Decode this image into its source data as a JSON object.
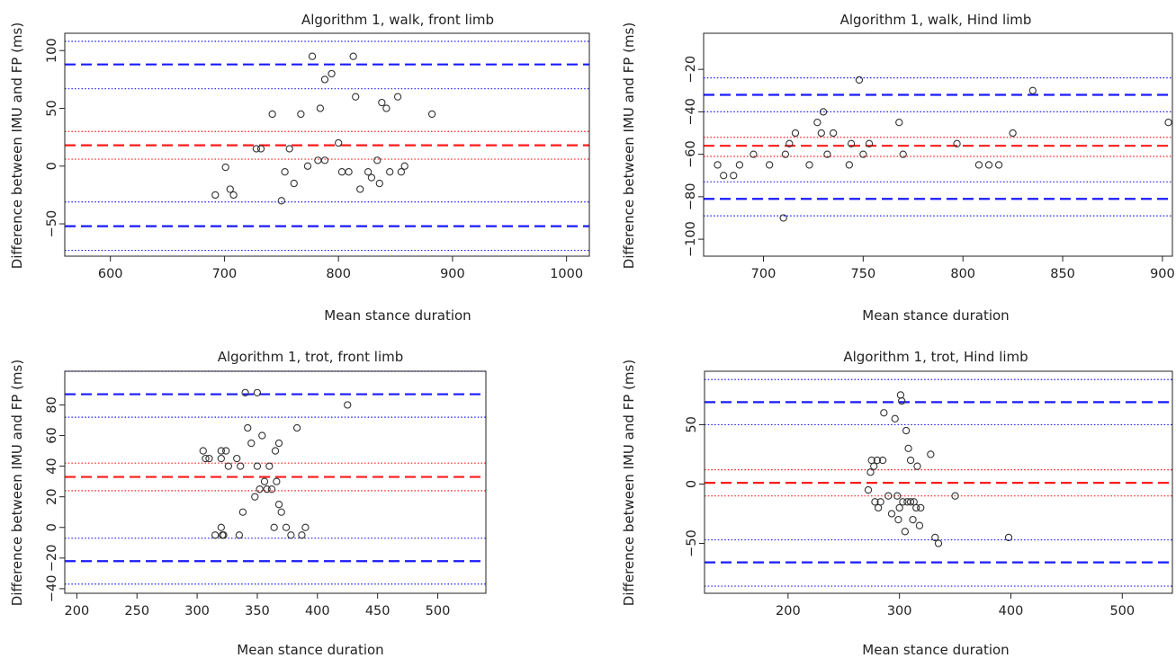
{
  "figure": {
    "line_colors": {
      "limits": "#1a1aff",
      "bias": "#ff1a1a"
    }
  },
  "chart_data": [
    {
      "type": "scatter",
      "title": "Algorithm 1, walk, front limb",
      "xlabel": "Mean stance duration",
      "ylabel": "Difference between IMU and FP (ms)",
      "xlim": [
        560,
        1020
      ],
      "ylim": [
        -78,
        115
      ],
      "xticks": [
        600,
        700,
        800,
        900,
        1000
      ],
      "yticks": [
        -50,
        0,
        50,
        100
      ],
      "hlines": {
        "loa": [
          88,
          -52
        ],
        "loa_ci": [
          108,
          67,
          -31,
          -73
        ],
        "bias": 18,
        "bias_ci": [
          30,
          6
        ]
      },
      "points": {
        "x": [
          692,
          701,
          705,
          708,
          728,
          732,
          742,
          750,
          753,
          757,
          761,
          767,
          773,
          777,
          782,
          784,
          788,
          788,
          794,
          800,
          803,
          809,
          813,
          815,
          819,
          826,
          829,
          834,
          836,
          838,
          842,
          845,
          852,
          855,
          858,
          882
        ],
        "y": [
          -25,
          -1,
          -20,
          -25,
          15,
          15,
          45,
          -30,
          -5,
          15,
          -15,
          45,
          0,
          95,
          5,
          50,
          75,
          5,
          80,
          20,
          -5,
          -5,
          95,
          60,
          -20,
          -5,
          -10,
          5,
          -15,
          55,
          50,
          -5,
          60,
          -5,
          0,
          45
        ]
      }
    },
    {
      "type": "scatter",
      "title": "Algorithm 1, walk, Hind limb",
      "xlabel": "Mean stance duration",
      "ylabel": "Difference between IMU and FP (ms)",
      "xlim": [
        670,
        905
      ],
      "ylim": [
        -108,
        -3
      ],
      "xticks": [
        700,
        750,
        800,
        850,
        900
      ],
      "yticks": [
        -100,
        -80,
        -60,
        -40,
        -20
      ],
      "hlines": {
        "loa": [
          -32,
          -81
        ],
        "loa_ci": [
          -24,
          -40,
          -73,
          -89
        ],
        "bias": -56,
        "bias_ci": [
          -52,
          -61
        ]
      },
      "points": {
        "x": [
          677,
          680,
          685,
          688,
          695,
          703,
          710,
          711,
          713,
          716,
          723,
          727,
          729,
          730,
          732,
          735,
          743,
          744,
          748,
          750,
          753,
          768,
          770,
          797,
          808,
          813,
          818,
          825,
          835,
          903
        ],
        "y": [
          -65,
          -70,
          -70,
          -65,
          -60,
          -65,
          -90,
          -60,
          -55,
          -50,
          -65,
          -45,
          -50,
          -40,
          -60,
          -50,
          -65,
          -55,
          -25,
          -60,
          -55,
          -45,
          -60,
          -55,
          -65,
          -65,
          -65,
          -50,
          -30,
          -45
        ]
      }
    },
    {
      "type": "scatter",
      "title": "Algorithm 1, trot, front limb",
      "xlabel": "Mean stance duration",
      "ylabel": "Difference between IMU and FP (ms)",
      "xlim": [
        190,
        540
      ],
      "ylim": [
        -43,
        102
      ],
      "xticks": [
        200,
        250,
        300,
        350,
        400,
        450,
        500
      ],
      "yticks": [
        -40,
        -20,
        0,
        20,
        40,
        60,
        80
      ],
      "hlines": {
        "loa": [
          87,
          -22
        ],
        "loa_ci": [
          102,
          72,
          -7,
          -37
        ],
        "bias": 33,
        "bias_ci": [
          42,
          24
        ]
      },
      "points": {
        "x": [
          305,
          307,
          310,
          315,
          320,
          320,
          320,
          321,
          322,
          324,
          326,
          333,
          335,
          336,
          338,
          340,
          342,
          345,
          348,
          350,
          350,
          352,
          354,
          356,
          358,
          360,
          362,
          364,
          365,
          366,
          368,
          368,
          370,
          374,
          378,
          383,
          387,
          390,
          425
        ],
        "y": [
          50,
          45,
          45,
          -5,
          50,
          0,
          45,
          -5,
          -5,
          50,
          40,
          45,
          -5,
          40,
          10,
          88,
          65,
          55,
          20,
          40,
          88,
          25,
          60,
          30,
          25,
          40,
          25,
          0,
          50,
          30,
          15,
          55,
          10,
          0,
          -5,
          65,
          -5,
          0,
          80
        ]
      }
    },
    {
      "type": "scatter",
      "title": "Algorithm 1, trot, Hind limb",
      "xlabel": "Mean stance duration",
      "ylabel": "Difference between IMU and FP (ms)",
      "xlim": [
        125,
        545
      ],
      "ylim": [
        -92,
        95
      ],
      "xticks": [
        200,
        300,
        400,
        500
      ],
      "yticks": [
        -50,
        0,
        50
      ],
      "hlines": {
        "loa": [
          69,
          -66
        ],
        "loa_ci": [
          88,
          50,
          -47,
          -86
        ],
        "bias": 1,
        "bias_ci": [
          12,
          -10
        ]
      },
      "points": {
        "x": [
          272,
          274,
          275,
          277,
          278,
          280,
          281,
          283,
          285,
          286,
          290,
          293,
          296,
          298,
          299,
          300,
          301,
          302,
          303,
          305,
          306,
          307,
          308,
          310,
          310,
          312,
          313,
          315,
          316,
          318,
          319,
          328,
          332,
          335,
          350,
          398
        ],
        "y": [
          -5,
          10,
          20,
          15,
          -15,
          20,
          -20,
          -15,
          20,
          60,
          -10,
          -25,
          55,
          -10,
          -30,
          -20,
          75,
          70,
          -15,
          -40,
          45,
          -15,
          30,
          -15,
          20,
          -30,
          -15,
          -20,
          15,
          -35,
          -20,
          25,
          -45,
          -50,
          -10,
          -45
        ]
      }
    }
  ]
}
